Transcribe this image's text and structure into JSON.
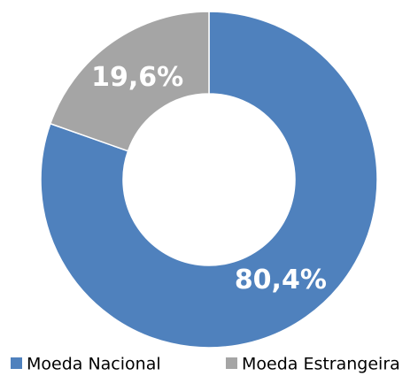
{
  "chart_data": {
    "type": "donut",
    "categories": [
      "Moeda Nacional",
      "Moeda Estrangeira"
    ],
    "values": [
      80.4,
      19.6
    ],
    "value_labels": [
      "80,4%",
      "19,6%"
    ],
    "colors": [
      "#4f81bd",
      "#a5a5a5"
    ],
    "legend": "bottom"
  }
}
